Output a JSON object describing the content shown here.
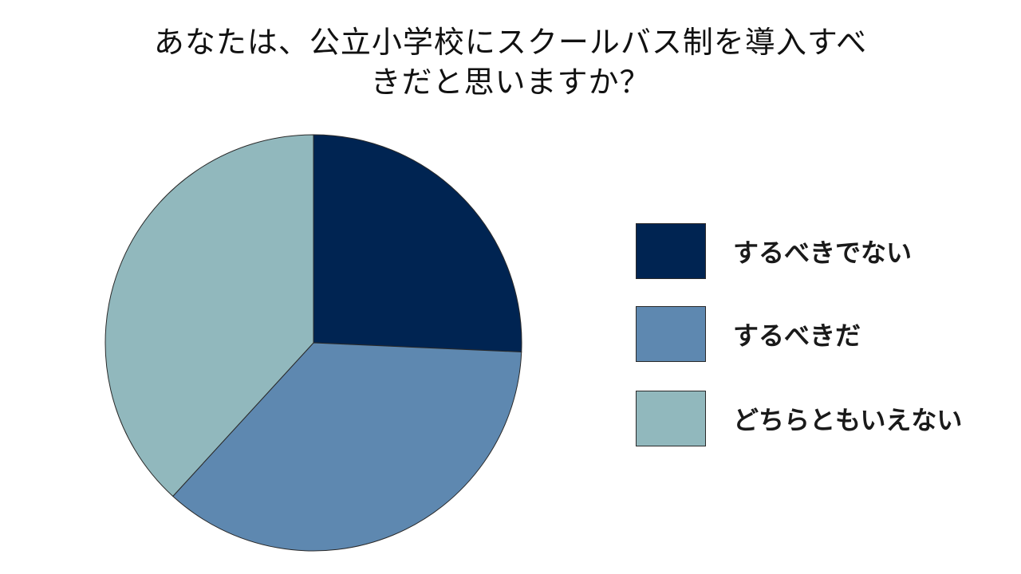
{
  "chart_data": {
    "type": "pie",
    "title_lines": [
      "あなたは、公立小学校にスクールバス制を導入すべ",
      "きだと思いますか？"
    ],
    "slices": [
      {
        "label": "するべきでない",
        "value": 25.7,
        "color": "#002452"
      },
      {
        "label": "するべきだ",
        "value": 36.1,
        "color": "#5e88b0"
      },
      {
        "label": "どちらともいえない",
        "value": 38.2,
        "color": "#91b8bd"
      }
    ],
    "start_angle_deg": 0,
    "direction": "clockwise",
    "legend_position": "right"
  }
}
